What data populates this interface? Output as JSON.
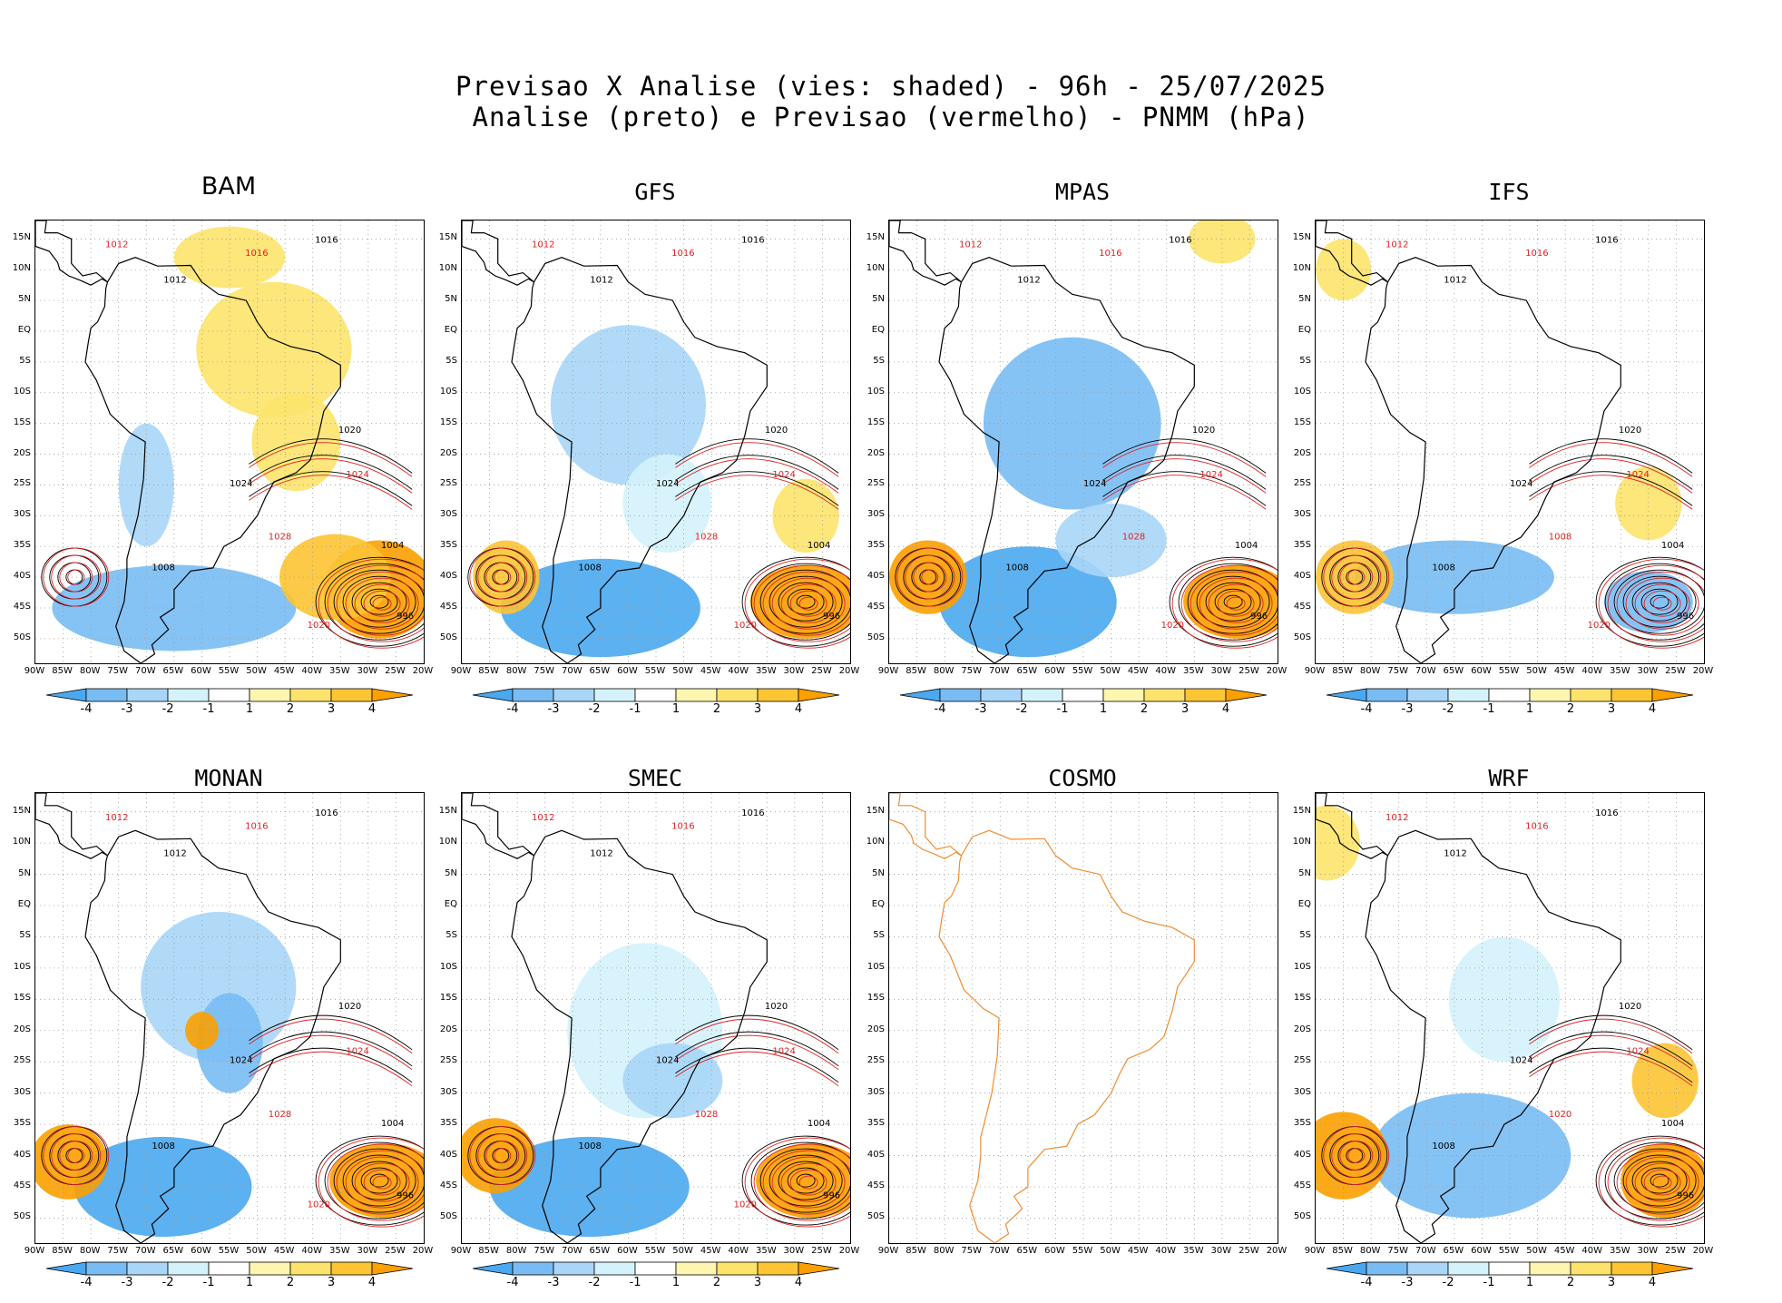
{
  "title": {
    "line1": "Previsao X Analise (vies: shaded) - 96h - 25/07/2025",
    "line2": "Analise (preto) e Previsao (vermelho) - PNMM (hPa)"
  },
  "axes": {
    "lat_labels": [
      "15N",
      "10N",
      "5N",
      "EQ",
      "5S",
      "10S",
      "15S",
      "20S",
      "25S",
      "30S",
      "35S",
      "40S",
      "45S",
      "50S"
    ],
    "lon_labels": [
      "90W",
      "85W",
      "80W",
      "75W",
      "70W",
      "65W",
      "60W",
      "55W",
      "50W",
      "45W",
      "40W",
      "35W",
      "30W",
      "25W",
      "20W"
    ]
  },
  "colorbar": {
    "ticks": [
      "-4",
      "-3",
      "-2",
      "-1",
      "1",
      "2",
      "3",
      "4"
    ],
    "colors": [
      "#4aa8f0",
      "#79bcf4",
      "#a9d6f8",
      "#d4f2fb",
      "#ffffff",
      "#fdf5b0",
      "#fde36b",
      "#fdc434",
      "#fca000"
    ]
  },
  "panels": [
    {
      "name": "BAM",
      "has_data": true,
      "labels_black": [
        "1012",
        "1016",
        "1020",
        "1024",
        "1008",
        "1004",
        "996"
      ],
      "labels_red": [
        "1012",
        "1016",
        "1028",
        "1024",
        "1020"
      ]
    },
    {
      "name": "GFS",
      "has_data": true,
      "labels_black": [
        "1012",
        "1016",
        "1020",
        "1024",
        "1008",
        "1004",
        "996"
      ],
      "labels_red": [
        "1012",
        "1016",
        "1028",
        "1024",
        "1020"
      ]
    },
    {
      "name": "MPAS",
      "has_data": true,
      "labels_black": [
        "1012",
        "1016",
        "1020",
        "1024",
        "1008",
        "1004",
        "996"
      ],
      "labels_red": [
        "1012",
        "1016",
        "1028",
        "1024",
        "1020"
      ]
    },
    {
      "name": "IFS",
      "has_data": true,
      "labels_black": [
        "1012",
        "1016",
        "1020",
        "1024",
        "1008",
        "1004",
        "996"
      ],
      "labels_red": [
        "1012",
        "1016",
        "1008",
        "1024",
        "1020"
      ]
    },
    {
      "name": "MONAN",
      "has_data": true,
      "labels_black": [
        "1012",
        "1016",
        "1020",
        "1024",
        "1008",
        "1004",
        "996"
      ],
      "labels_red": [
        "1012",
        "1016",
        "1028",
        "1024",
        "1020"
      ]
    },
    {
      "name": "SMEC",
      "has_data": true,
      "labels_black": [
        "1012",
        "1016",
        "1020",
        "1024",
        "1008",
        "1004",
        "996"
      ],
      "labels_red": [
        "1012",
        "1016",
        "1028",
        "1024",
        "1020"
      ]
    },
    {
      "name": "COSMO",
      "has_data": false,
      "labels_black": [],
      "labels_red": []
    },
    {
      "name": "WRF",
      "has_data": true,
      "labels_black": [
        "1012",
        "1016",
        "1020",
        "1024",
        "1008",
        "1004",
        "996"
      ],
      "labels_red": [
        "1012",
        "1016",
        "1020",
        "1024"
      ]
    }
  ]
}
